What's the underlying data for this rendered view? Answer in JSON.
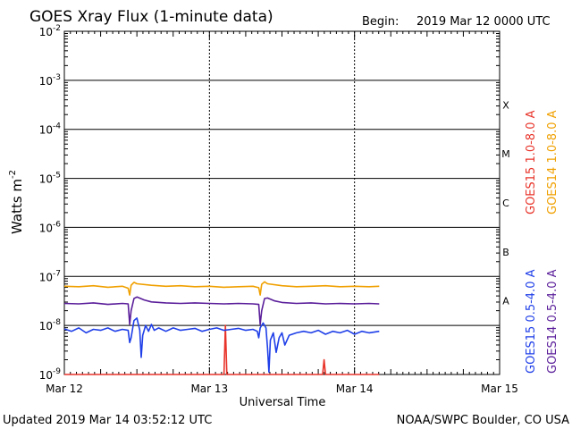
{
  "header": {
    "title": "GOES Xray Flux (1-minute data)",
    "begin_label": "Begin:",
    "begin_value": "2019 Mar 12 0000 UTC"
  },
  "footer": {
    "updated": "Updated 2019 Mar 14 03:52:12 UTC",
    "credit": "NOAA/SWPC Boulder, CO USA"
  },
  "chart_data": {
    "type": "line",
    "title": "GOES Xray Flux (1-minute data)",
    "xlabel": "Universal Time",
    "ylabel": "Watts m",
    "ylabel_superscript": "-2",
    "y_scale": "log",
    "ylim": [
      1e-09,
      0.01
    ],
    "x_range_days": [
      0,
      3
    ],
    "x_ticks": [
      {
        "day": 0,
        "label": "Mar 12"
      },
      {
        "day": 1,
        "label": "Mar 13"
      },
      {
        "day": 2,
        "label": "Mar 14"
      },
      {
        "day": 3,
        "label": "Mar 15"
      }
    ],
    "y_ticks": [
      {
        "exp": -2,
        "base": "10",
        "sup": "-2"
      },
      {
        "exp": -3,
        "base": "10",
        "sup": "-3"
      },
      {
        "exp": -4,
        "base": "10",
        "sup": "-4"
      },
      {
        "exp": -5,
        "base": "10",
        "sup": "-5"
      },
      {
        "exp": -6,
        "base": "10",
        "sup": "-6"
      },
      {
        "exp": -7,
        "base": "10",
        "sup": "-7"
      },
      {
        "exp": -8,
        "base": "10",
        "sup": "-8"
      },
      {
        "exp": -9,
        "base": "10",
        "sup": "-9"
      }
    ],
    "flare_classes": [
      {
        "label": "X",
        "exp": -3.5
      },
      {
        "label": "M",
        "exp": -4.5
      },
      {
        "label": "C",
        "exp": -5.5
      },
      {
        "label": "B",
        "exp": -6.5
      },
      {
        "label": "A",
        "exp": -7.5
      }
    ],
    "grid": true,
    "legend_position": "right",
    "series": [
      {
        "name": "GOES15 1.0-8.0 A",
        "color": "#e8342a",
        "points": [
          [
            0.0,
            -9.0
          ],
          [
            1.1,
            -9.0
          ],
          [
            1.11,
            -8.0
          ],
          [
            1.12,
            -9.0
          ],
          [
            1.78,
            -9.0
          ],
          [
            1.79,
            -8.7
          ],
          [
            1.8,
            -9.0
          ],
          [
            2.17,
            -9.0
          ]
        ]
      },
      {
        "name": "GOES14 1.0-8.0 A",
        "color": "#f0a000",
        "points": [
          [
            0.0,
            -7.2
          ],
          [
            0.1,
            -7.21
          ],
          [
            0.2,
            -7.19
          ],
          [
            0.3,
            -7.22
          ],
          [
            0.4,
            -7.2
          ],
          [
            0.44,
            -7.24
          ],
          [
            0.45,
            -7.38
          ],
          [
            0.46,
            -7.18
          ],
          [
            0.48,
            -7.12
          ],
          [
            0.5,
            -7.15
          ],
          [
            0.6,
            -7.18
          ],
          [
            0.7,
            -7.2
          ],
          [
            0.8,
            -7.19
          ],
          [
            0.9,
            -7.21
          ],
          [
            1.0,
            -7.2
          ],
          [
            1.1,
            -7.22
          ],
          [
            1.2,
            -7.21
          ],
          [
            1.3,
            -7.2
          ],
          [
            1.34,
            -7.23
          ],
          [
            1.35,
            -7.38
          ],
          [
            1.36,
            -7.16
          ],
          [
            1.38,
            -7.11
          ],
          [
            1.4,
            -7.15
          ],
          [
            1.5,
            -7.19
          ],
          [
            1.6,
            -7.21
          ],
          [
            1.7,
            -7.2
          ],
          [
            1.8,
            -7.19
          ],
          [
            1.9,
            -7.21
          ],
          [
            2.0,
            -7.2
          ],
          [
            2.1,
            -7.21
          ],
          [
            2.17,
            -7.2
          ]
        ]
      },
      {
        "name": "GOES15 0.5-4.0 A",
        "color": "#1f3fe8",
        "points": [
          [
            0.0,
            -8.07
          ],
          [
            0.05,
            -8.12
          ],
          [
            0.1,
            -8.05
          ],
          [
            0.15,
            -8.15
          ],
          [
            0.2,
            -8.08
          ],
          [
            0.25,
            -8.1
          ],
          [
            0.3,
            -8.05
          ],
          [
            0.35,
            -8.12
          ],
          [
            0.4,
            -8.08
          ],
          [
            0.44,
            -8.1
          ],
          [
            0.45,
            -8.35
          ],
          [
            0.46,
            -8.25
          ],
          [
            0.48,
            -7.9
          ],
          [
            0.5,
            -7.85
          ],
          [
            0.52,
            -8.1
          ],
          [
            0.53,
            -8.65
          ],
          [
            0.54,
            -8.2
          ],
          [
            0.56,
            -8.0
          ],
          [
            0.58,
            -8.12
          ],
          [
            0.6,
            -7.98
          ],
          [
            0.62,
            -8.1
          ],
          [
            0.65,
            -8.05
          ],
          [
            0.7,
            -8.12
          ],
          [
            0.75,
            -8.05
          ],
          [
            0.8,
            -8.1
          ],
          [
            0.85,
            -8.08
          ],
          [
            0.9,
            -8.06
          ],
          [
            0.95,
            -8.12
          ],
          [
            1.0,
            -8.08
          ],
          [
            1.05,
            -8.05
          ],
          [
            1.1,
            -8.1
          ],
          [
            1.15,
            -8.08
          ],
          [
            1.2,
            -8.06
          ],
          [
            1.25,
            -8.1
          ],
          [
            1.3,
            -8.08
          ],
          [
            1.33,
            -8.12
          ],
          [
            1.34,
            -8.25
          ],
          [
            1.35,
            -8.05
          ],
          [
            1.37,
            -7.95
          ],
          [
            1.39,
            -8.05
          ],
          [
            1.4,
            -8.45
          ],
          [
            1.41,
            -8.95
          ],
          [
            1.42,
            -8.3
          ],
          [
            1.44,
            -8.15
          ],
          [
            1.46,
            -8.55
          ],
          [
            1.48,
            -8.25
          ],
          [
            1.5,
            -8.15
          ],
          [
            1.52,
            -8.4
          ],
          [
            1.55,
            -8.2
          ],
          [
            1.6,
            -8.15
          ],
          [
            1.65,
            -8.12
          ],
          [
            1.7,
            -8.15
          ],
          [
            1.75,
            -8.1
          ],
          [
            1.8,
            -8.18
          ],
          [
            1.85,
            -8.12
          ],
          [
            1.9,
            -8.15
          ],
          [
            1.95,
            -8.1
          ],
          [
            2.0,
            -8.18
          ],
          [
            2.05,
            -8.12
          ],
          [
            2.1,
            -8.15
          ],
          [
            2.17,
            -8.12
          ]
        ]
      },
      {
        "name": "GOES14 0.5-4.0 A",
        "color": "#5a1e9a",
        "points": [
          [
            0.0,
            -7.55
          ],
          [
            0.1,
            -7.56
          ],
          [
            0.2,
            -7.54
          ],
          [
            0.3,
            -7.57
          ],
          [
            0.4,
            -7.55
          ],
          [
            0.44,
            -7.56
          ],
          [
            0.45,
            -7.98
          ],
          [
            0.46,
            -7.7
          ],
          [
            0.48,
            -7.45
          ],
          [
            0.5,
            -7.42
          ],
          [
            0.55,
            -7.48
          ],
          [
            0.6,
            -7.52
          ],
          [
            0.7,
            -7.54
          ],
          [
            0.8,
            -7.55
          ],
          [
            0.9,
            -7.54
          ],
          [
            1.0,
            -7.55
          ],
          [
            1.1,
            -7.56
          ],
          [
            1.2,
            -7.55
          ],
          [
            1.3,
            -7.56
          ],
          [
            1.34,
            -7.57
          ],
          [
            1.35,
            -7.98
          ],
          [
            1.36,
            -7.7
          ],
          [
            1.38,
            -7.45
          ],
          [
            1.4,
            -7.44
          ],
          [
            1.45,
            -7.5
          ],
          [
            1.5,
            -7.53
          ],
          [
            1.6,
            -7.55
          ],
          [
            1.7,
            -7.54
          ],
          [
            1.8,
            -7.56
          ],
          [
            1.9,
            -7.55
          ],
          [
            2.0,
            -7.56
          ],
          [
            2.1,
            -7.55
          ],
          [
            2.17,
            -7.56
          ]
        ]
      }
    ]
  }
}
